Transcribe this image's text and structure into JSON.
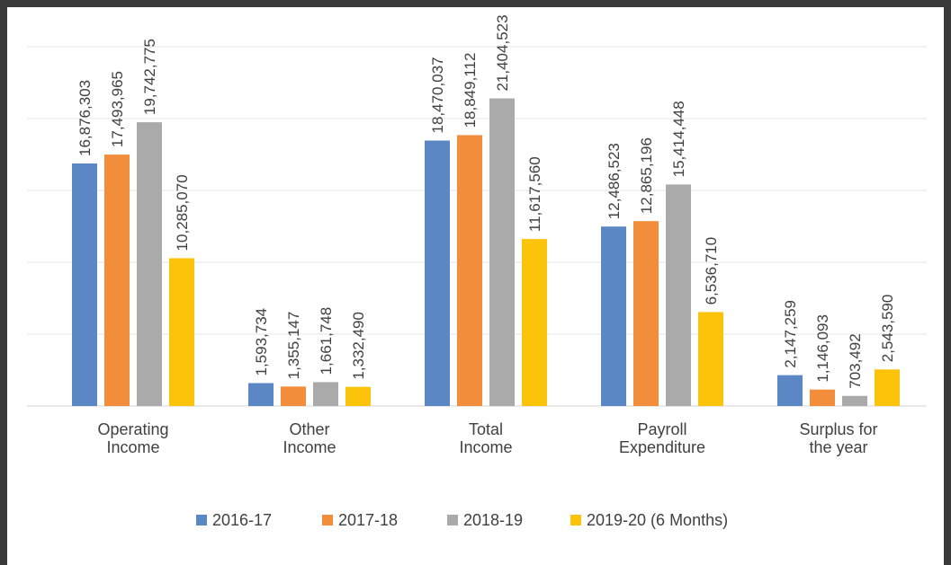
{
  "chart_data": {
    "type": "bar",
    "categories": [
      "Operating\nIncome",
      "Other\nIncome",
      "Total\nIncome",
      "Payroll\nExpenditure",
      "Surplus for\nthe year"
    ],
    "series": [
      {
        "name": "2016-17",
        "color": "#5b87c5",
        "values": [
          16876303,
          1593734,
          18470037,
          12486523,
          2147259
        ],
        "value_labels": [
          "16,876,303",
          "1,593,734",
          "18,470,037",
          "12,486,523",
          "2,147,259"
        ]
      },
      {
        "name": "2017-18",
        "color": "#f28e3b",
        "values": [
          17493965,
          1355147,
          18849112,
          12865196,
          1146093
        ],
        "value_labels": [
          "17,493,965",
          "1,355,147",
          "18,849,112",
          "12,865,196",
          "1,146,093"
        ]
      },
      {
        "name": "2018-19",
        "color": "#aaaaaa",
        "values": [
          19742775,
          1661748,
          21404523,
          15414448,
          703492
        ],
        "value_labels": [
          "19,742,775",
          "1,661,748",
          "21,404,523",
          "15,414,448",
          "703,492"
        ]
      },
      {
        "name": "2019-20 (6 Months)",
        "color": "#fcc30b",
        "values": [
          10285070,
          1332490,
          11617560,
          6536710,
          2543590
        ],
        "value_labels": [
          "10,285,070",
          "1,332,490",
          "11,617,560",
          "6,536,710",
          "2,543,590"
        ]
      }
    ],
    "ylim": [
      0,
      25000000
    ],
    "yticks": [
      0,
      5000000,
      10000000,
      15000000,
      20000000,
      25000000
    ],
    "grid": true,
    "legend": "bottom"
  }
}
